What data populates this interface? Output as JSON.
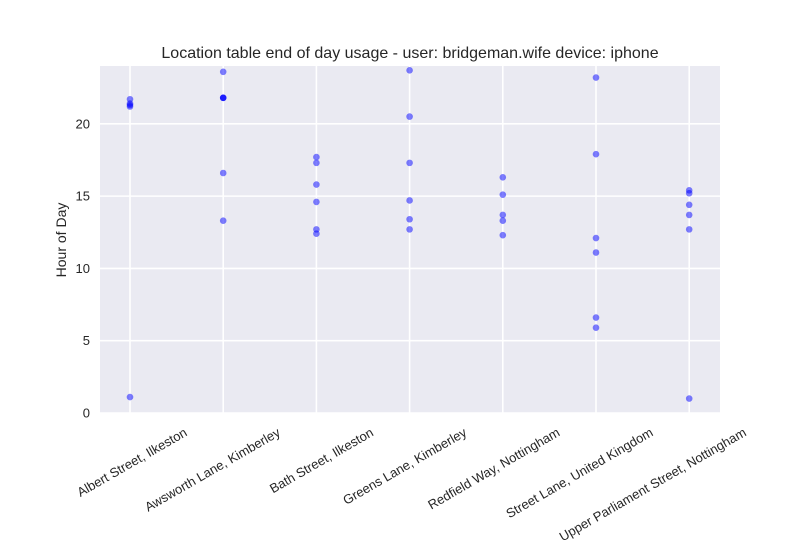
{
  "chart_data": {
    "type": "scatter",
    "title": "Location table end of day usage -  user: bridgeman.wife device: iphone",
    "xlabel": "",
    "ylabel": "Hour of Day",
    "ylim": [
      0,
      24
    ],
    "yticks": [
      0,
      5,
      10,
      15,
      20
    ],
    "grid": true,
    "point_color": "#0000ff",
    "plot_background": "#eaeaf2",
    "categories": [
      "Albert Street, Ilkeston",
      "Awsworth Lane, Kimberley",
      "Bath Street, Ilkeston",
      "Greens Lane, Kimberley",
      "Redfield Way, Nottingham",
      "Street Lane, United Kingdom",
      "Upper Parliament Street, Nottingham"
    ],
    "series": [
      {
        "category": "Albert Street, Ilkeston",
        "values": [
          21.7,
          21.4,
          21.3,
          21.2,
          1.1
        ]
      },
      {
        "category": "Awsworth Lane, Kimberley",
        "values": [
          23.6,
          21.8,
          21.8,
          21.8,
          16.6,
          13.3
        ]
      },
      {
        "category": "Bath Street, Ilkeston",
        "values": [
          17.7,
          17.3,
          15.8,
          14.6,
          12.7,
          12.4
        ]
      },
      {
        "category": "Greens Lane, Kimberley",
        "values": [
          23.7,
          20.5,
          17.3,
          14.7,
          13.4,
          12.7
        ]
      },
      {
        "category": "Redfield Way, Nottingham",
        "values": [
          16.3,
          15.1,
          13.7,
          13.3,
          12.3
        ]
      },
      {
        "category": "Street Lane, United Kingdom",
        "values": [
          23.2,
          17.9,
          12.1,
          11.1,
          6.6,
          5.9
        ]
      },
      {
        "category": "Upper Parliament Street, Nottingham",
        "values": [
          15.4,
          15.2,
          14.4,
          13.7,
          12.7,
          1.0
        ]
      }
    ]
  }
}
